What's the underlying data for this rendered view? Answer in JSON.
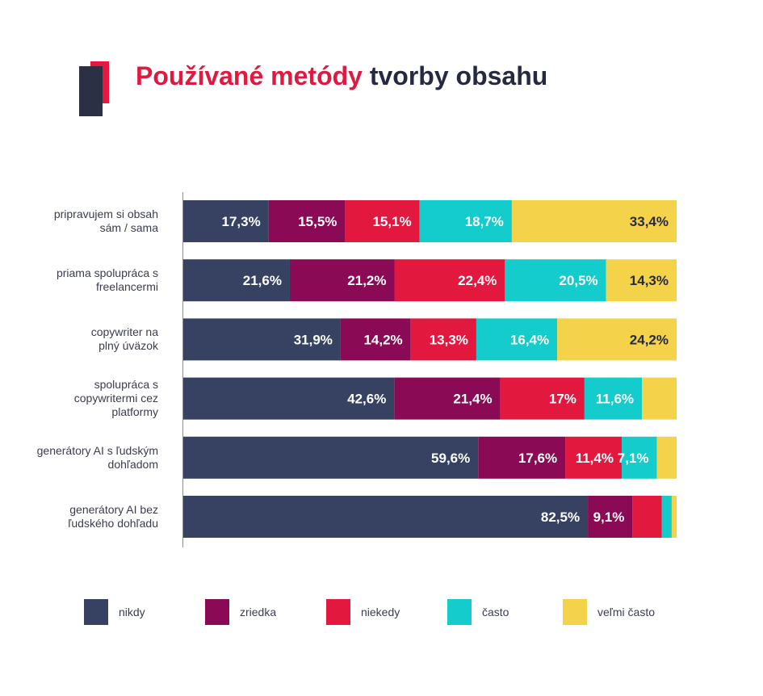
{
  "title": {
    "part1": "Používané metódy",
    "part2": "tvorby obsahu"
  },
  "colors": {
    "nikdy": "#374263",
    "zriedka": "#8b0a55",
    "niekedy": "#e2183f",
    "casto": "#14cccb",
    "velmi_casto": "#f4d24a",
    "accent": "#e0193f",
    "dark": "#2c3045"
  },
  "legend": [
    {
      "label": "nikdy",
      "color": "#374263"
    },
    {
      "label": "zriedka",
      "color": "#8b0a55"
    },
    {
      "label": "niekedy",
      "color": "#e2183f"
    },
    {
      "label": "často",
      "color": "#14cccb"
    },
    {
      "label": "veľmi často",
      "color": "#f4d24a"
    }
  ],
  "chart_data": {
    "type": "bar",
    "orientation": "horizontal",
    "stacked": true,
    "percent_stacked": true,
    "categories": [
      [
        "pripravujem si obsah",
        "sám / sama"
      ],
      [
        "priama spolupráca s",
        "freelancermi"
      ],
      [
        "copywriter na",
        "plný úväzok"
      ],
      [
        "spolupráca s",
        "copywritermi cez",
        "platformy"
      ],
      [
        "generátory AI s ľudským",
        "dohľadom"
      ],
      [
        "generátory AI bez",
        "ľudského dohľadu"
      ]
    ],
    "series": [
      {
        "name": "nikdy",
        "values": [
          17.3,
          21.6,
          31.9,
          42.6,
          59.6,
          82.5
        ],
        "labels": [
          "17,3%",
          "21,6%",
          "31,9%",
          "42,6%",
          "59,6%",
          "82,5%"
        ]
      },
      {
        "name": "zriedka",
        "values": [
          15.5,
          21.2,
          14.2,
          21.4,
          17.6,
          9.1
        ],
        "labels": [
          "15,5%",
          "21,2%",
          "14,2%",
          "21,4%",
          "17,6%",
          "9,1%"
        ]
      },
      {
        "name": "niekedy",
        "values": [
          15.1,
          22.4,
          13.3,
          17.0,
          11.4,
          6.0
        ],
        "labels": [
          "15,1%",
          "22,4%",
          "13,3%",
          "17%",
          "11,4%",
          ""
        ]
      },
      {
        "name": "často",
        "values": [
          18.7,
          20.5,
          16.4,
          11.6,
          7.1,
          2.0
        ],
        "labels": [
          "18,7%",
          "20,5%",
          "16,4%",
          "11,6%",
          "7,1%",
          ""
        ]
      },
      {
        "name": "veľmi často",
        "values": [
          33.4,
          14.3,
          24.2,
          7.0,
          4.0,
          1.0
        ],
        "labels": [
          "33,4%",
          "14,3%",
          "24,2%",
          "",
          "",
          ""
        ]
      }
    ],
    "label_colors": [
      "#ffffff",
      "#ffffff",
      "#ffffff",
      "#ffffff",
      "#262a40"
    ]
  }
}
